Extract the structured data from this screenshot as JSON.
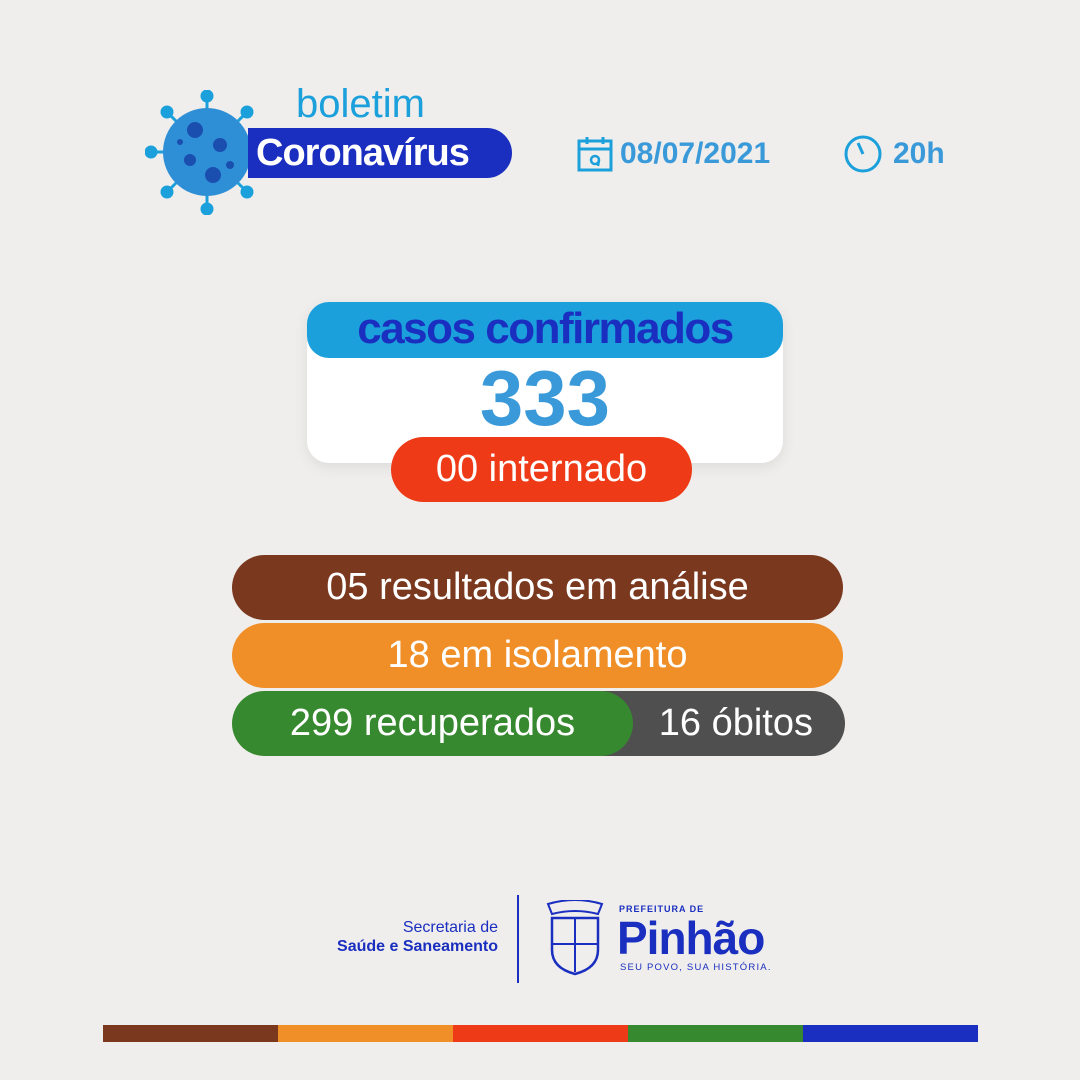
{
  "header": {
    "boletim": "boletim",
    "title": "Coronavírus",
    "date": "08/07/2021",
    "time": "20h",
    "date_icon": "calendar-icon",
    "time_icon": "clock-icon"
  },
  "cases": {
    "label": "casos confirmados",
    "count": "333",
    "hospitalized": "00 internado"
  },
  "stats": {
    "analysis": "05 resultados em análise",
    "isolation": "18 em isolamento",
    "recovered": "299 recuperados",
    "deaths": "16 óbitos"
  },
  "footer": {
    "secretaria_line1": "Secretaria de",
    "secretaria_line2": "Saúde e Saneamento",
    "prefeitura": "PREFEITURA DE",
    "city": "Pinhão",
    "slogan": "SEU POVO, SUA HISTÓRIA.",
    "crest_text": "PINHÃO"
  },
  "colors": {
    "blue": "#1a2ec0",
    "light_blue": "#1ba0dc",
    "red": "#ee3a16",
    "brown": "#7a381e",
    "orange": "#f08f28",
    "green": "#37892f",
    "gray": "#4f4f4f"
  },
  "stripes": [
    "#7a381e",
    "#f08f28",
    "#ee3a16",
    "#37892f",
    "#1a2ec0"
  ]
}
